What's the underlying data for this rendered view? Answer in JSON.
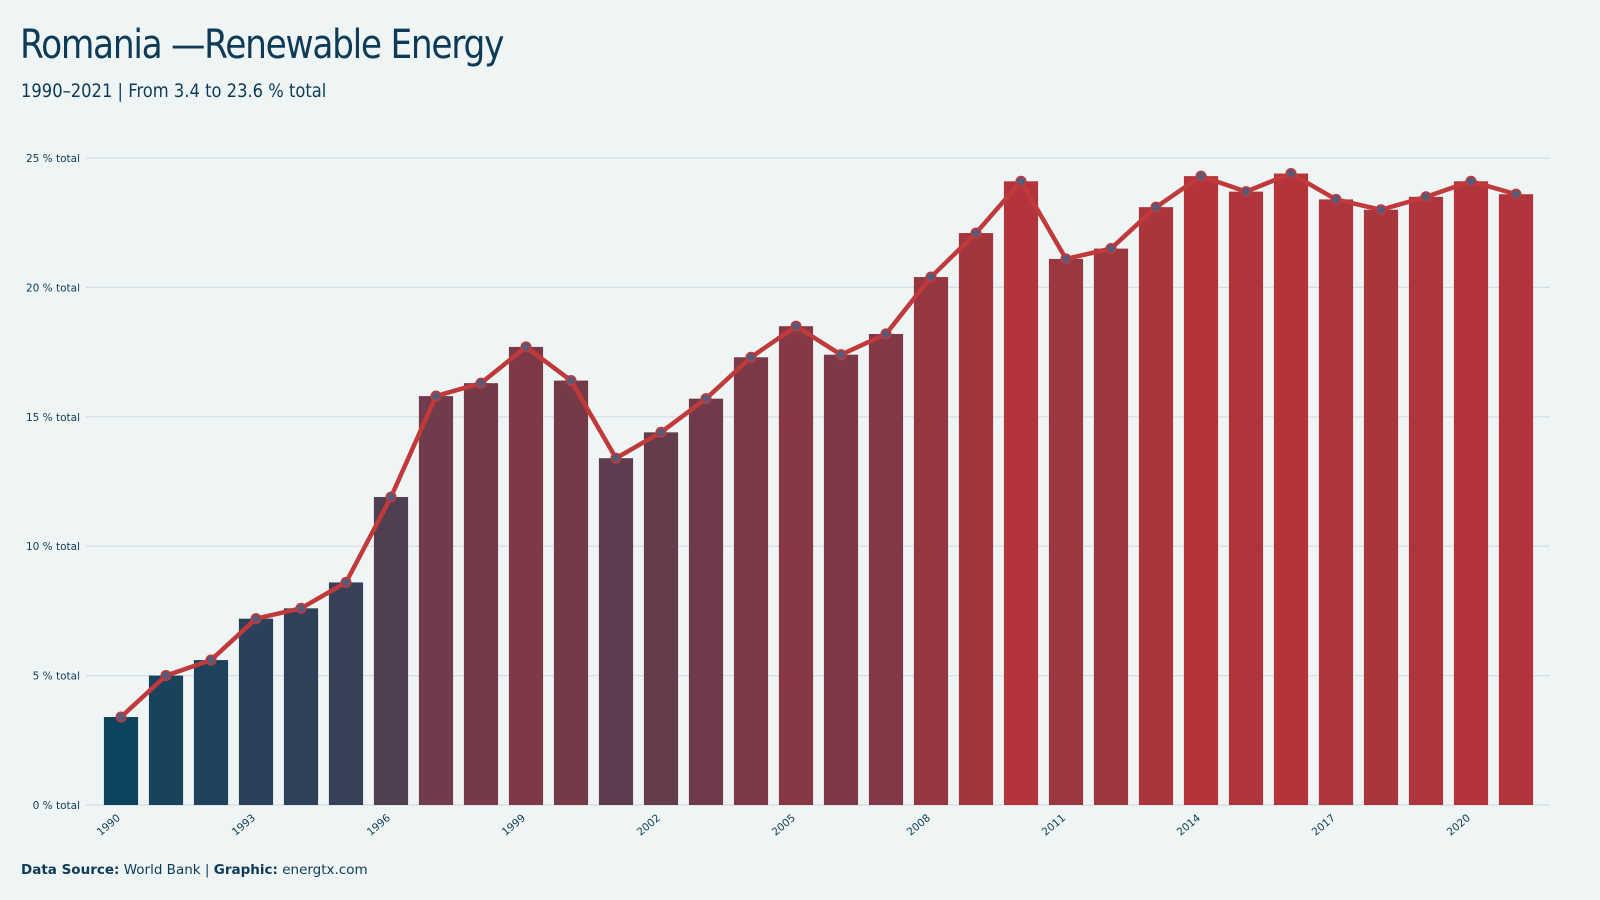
{
  "header": {
    "title": "Romania —Renewable Energy",
    "subtitle": "1990–2021 | From 3.4 to 23.6 % total"
  },
  "footer": {
    "source_label": "Data Source:",
    "source_value": "World Bank",
    "separator": "|",
    "graphic_label": "Graphic:",
    "graphic_value": "energtx.com"
  },
  "colors": {
    "background": "#eff5f5",
    "low": "#0c4460",
    "high": "#b5343a",
    "line": "#c0393b",
    "point_fill": "#5a5a78",
    "grid": "#d3dde2",
    "text": "#0d3b57"
  },
  "chart_data": {
    "type": "bar",
    "overlay": "line",
    "x": [
      1990,
      1991,
      1992,
      1993,
      1994,
      1995,
      1996,
      1997,
      1998,
      1999,
      2000,
      2001,
      2002,
      2003,
      2004,
      2005,
      2006,
      2007,
      2008,
      2009,
      2010,
      2011,
      2012,
      2013,
      2014,
      2015,
      2016,
      2017,
      2018,
      2019,
      2020,
      2021
    ],
    "values": [
      3.4,
      5.0,
      5.6,
      7.2,
      7.6,
      8.6,
      11.9,
      15.8,
      16.3,
      17.7,
      16.4,
      13.4,
      14.4,
      15.7,
      17.3,
      18.5,
      17.4,
      18.2,
      20.4,
      22.1,
      24.1,
      21.1,
      21.5,
      23.1,
      24.3,
      23.7,
      24.4,
      23.4,
      23.0,
      23.5,
      24.1,
      23.6
    ],
    "ylim": [
      0,
      25
    ],
    "yticks": [
      0,
      5,
      10,
      15,
      20,
      25
    ],
    "ytick_labels": [
      "0 % total",
      "5 % total",
      "10 % total",
      "15 % total",
      "20 % total",
      "25 % total"
    ],
    "xticks": [
      1990,
      1993,
      1996,
      1999,
      2002,
      2005,
      2008,
      2011,
      2014,
      2017,
      2020
    ],
    "xtick_labels": [
      "1990",
      "1993",
      "1996",
      "1999",
      "2002",
      "2005",
      "2008",
      "2011",
      "2014",
      "2017",
      "2020"
    ],
    "grid": true,
    "unit": "% total"
  }
}
